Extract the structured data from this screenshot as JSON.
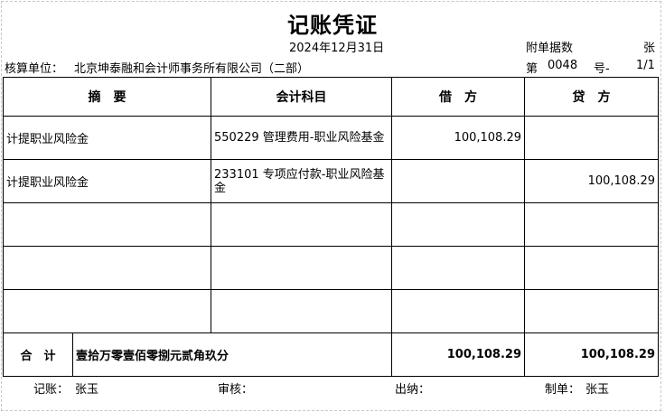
{
  "title": "记账凭证",
  "date": "2024年12月31日",
  "attachments": {
    "label": "附单据数",
    "unit": "张"
  },
  "unit": {
    "label": "核算单位：",
    "value": "北京坤泰融和会计师事务所有限公司（二部）"
  },
  "voucher": {
    "prefix": "第",
    "number": "0048",
    "suffix": "号-",
    "page": "1/1"
  },
  "headers": [
    "摘　要",
    "会计科目",
    "借　方",
    "贷　方"
  ],
  "rows": [
    {
      "summary": "计提职业风险金",
      "account": "550229 管理费用-职业风险基金",
      "debit": "100,108.29",
      "credit": ""
    },
    {
      "summary": "计提职业风险金",
      "account": "233101 专项应付款-职业风险基金",
      "debit": "",
      "credit": "100,108.29"
    },
    {
      "summary": "",
      "account": "",
      "debit": "",
      "credit": ""
    },
    {
      "summary": "",
      "account": "",
      "debit": "",
      "credit": ""
    },
    {
      "summary": "",
      "account": "",
      "debit": "",
      "credit": ""
    }
  ],
  "total": {
    "label": "合　计",
    "amount_words": "壹拾万零壹佰零捌元贰角玖分",
    "debit": "100,108.29",
    "credit": "100,108.29"
  },
  "footer": {
    "bookkeeper_label": "记账：",
    "bookkeeper": "张玉",
    "reviewer_label": "审核：",
    "cashier_label": "出纳：",
    "preparer_label": "制单：",
    "preparer": "张玉"
  }
}
